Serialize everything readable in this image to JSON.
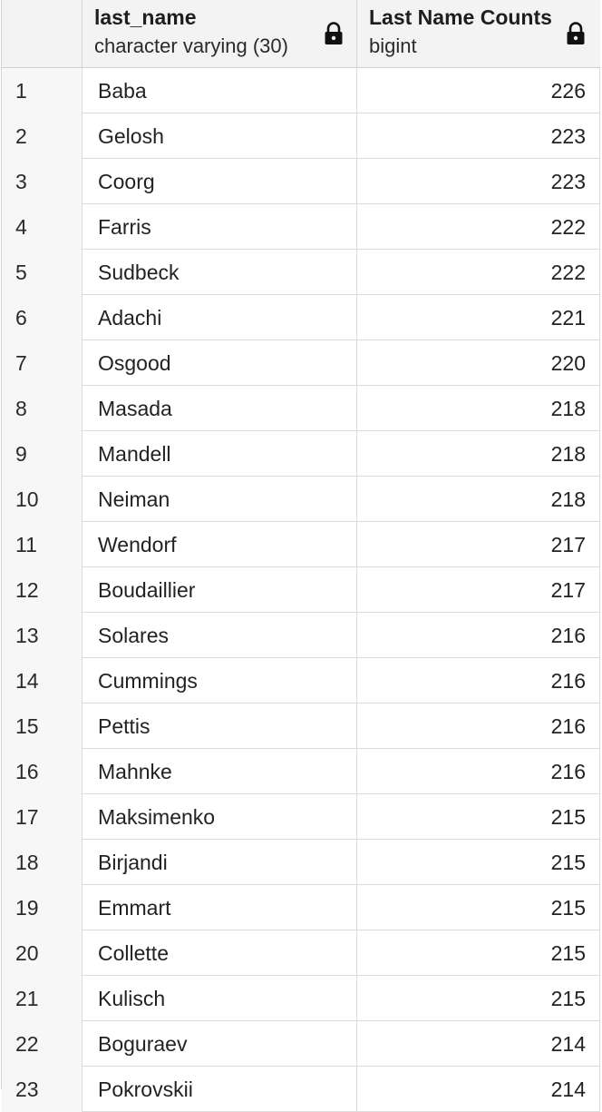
{
  "columns": [
    {
      "name": "last_name",
      "type": "character varying (30)",
      "locked_icon": "lock-icon"
    },
    {
      "name": "Last Name Counts",
      "type": "bigint",
      "locked_icon": "lock-icon"
    }
  ],
  "rows": [
    {
      "num": "1",
      "last_name": "Baba",
      "count": "226"
    },
    {
      "num": "2",
      "last_name": "Gelosh",
      "count": "223"
    },
    {
      "num": "3",
      "last_name": "Coorg",
      "count": "223"
    },
    {
      "num": "4",
      "last_name": "Farris",
      "count": "222"
    },
    {
      "num": "5",
      "last_name": "Sudbeck",
      "count": "222"
    },
    {
      "num": "6",
      "last_name": "Adachi",
      "count": "221"
    },
    {
      "num": "7",
      "last_name": "Osgood",
      "count": "220"
    },
    {
      "num": "8",
      "last_name": "Masada",
      "count": "218"
    },
    {
      "num": "9",
      "last_name": "Mandell",
      "count": "218"
    },
    {
      "num": "10",
      "last_name": "Neiman",
      "count": "218"
    },
    {
      "num": "11",
      "last_name": "Wendorf",
      "count": "217"
    },
    {
      "num": "12",
      "last_name": "Boudaillier",
      "count": "217"
    },
    {
      "num": "13",
      "last_name": "Solares",
      "count": "216"
    },
    {
      "num": "14",
      "last_name": "Cummings",
      "count": "216"
    },
    {
      "num": "15",
      "last_name": "Pettis",
      "count": "216"
    },
    {
      "num": "16",
      "last_name": "Mahnke",
      "count": "216"
    },
    {
      "num": "17",
      "last_name": "Maksimenko",
      "count": "215"
    },
    {
      "num": "18",
      "last_name": "Birjandi",
      "count": "215"
    },
    {
      "num": "19",
      "last_name": "Emmart",
      "count": "215"
    },
    {
      "num": "20",
      "last_name": "Collette",
      "count": "215"
    },
    {
      "num": "21",
      "last_name": "Kulisch",
      "count": "215"
    },
    {
      "num": "22",
      "last_name": "Boguraev",
      "count": "214"
    },
    {
      "num": "23",
      "last_name": "Pokrovskii",
      "count": "214"
    }
  ]
}
